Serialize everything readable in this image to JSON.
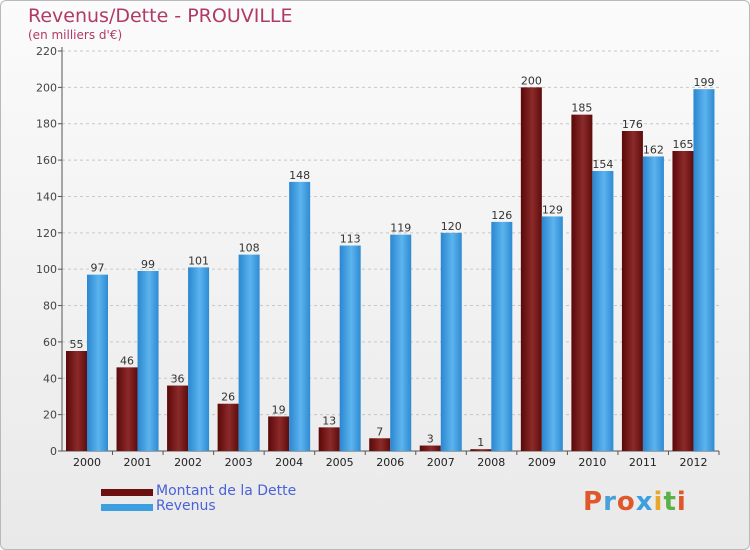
{
  "header": {
    "title": "Revenus/Dette - PROUVILLE",
    "subtitle": "(en milliers d'€)"
  },
  "colors": {
    "title": "#b03a67",
    "dette": "#7a1f1f",
    "revenus": "#3d9ee0",
    "legend_text": "#4a62d8"
  },
  "legend": {
    "items": [
      {
        "label": "Montant de la Dette",
        "color": "#6b0f0f"
      },
      {
        "label": "Revenus",
        "color": "#3d9ee0"
      }
    ]
  },
  "logo": {
    "text": "Proxiti",
    "letter_colors": [
      "#e0572a",
      "#4aa0d8",
      "#e0572a",
      "#3d9ee0",
      "#e8a62d",
      "#5ab04a",
      "#e0572a"
    ]
  },
  "chart_data": {
    "type": "bar",
    "categories": [
      "2000",
      "2001",
      "2002",
      "2003",
      "2004",
      "2005",
      "2006",
      "2007",
      "2008",
      "2009",
      "2010",
      "2011",
      "2012"
    ],
    "series": [
      {
        "name": "Montant de la Dette",
        "values": [
          55,
          46,
          36,
          26,
          19,
          13,
          7,
          3,
          1,
          200,
          185,
          176,
          165
        ]
      },
      {
        "name": "Revenus",
        "values": [
          97,
          99,
          101,
          108,
          148,
          113,
          119,
          120,
          126,
          129,
          154,
          162,
          199
        ]
      }
    ],
    "ylim": [
      0,
      220
    ],
    "yticks": [
      0,
      20,
      40,
      60,
      80,
      100,
      120,
      140,
      160,
      180,
      200,
      220
    ],
    "grid": "horizontal dashed",
    "legend_position": "bottom-left"
  }
}
